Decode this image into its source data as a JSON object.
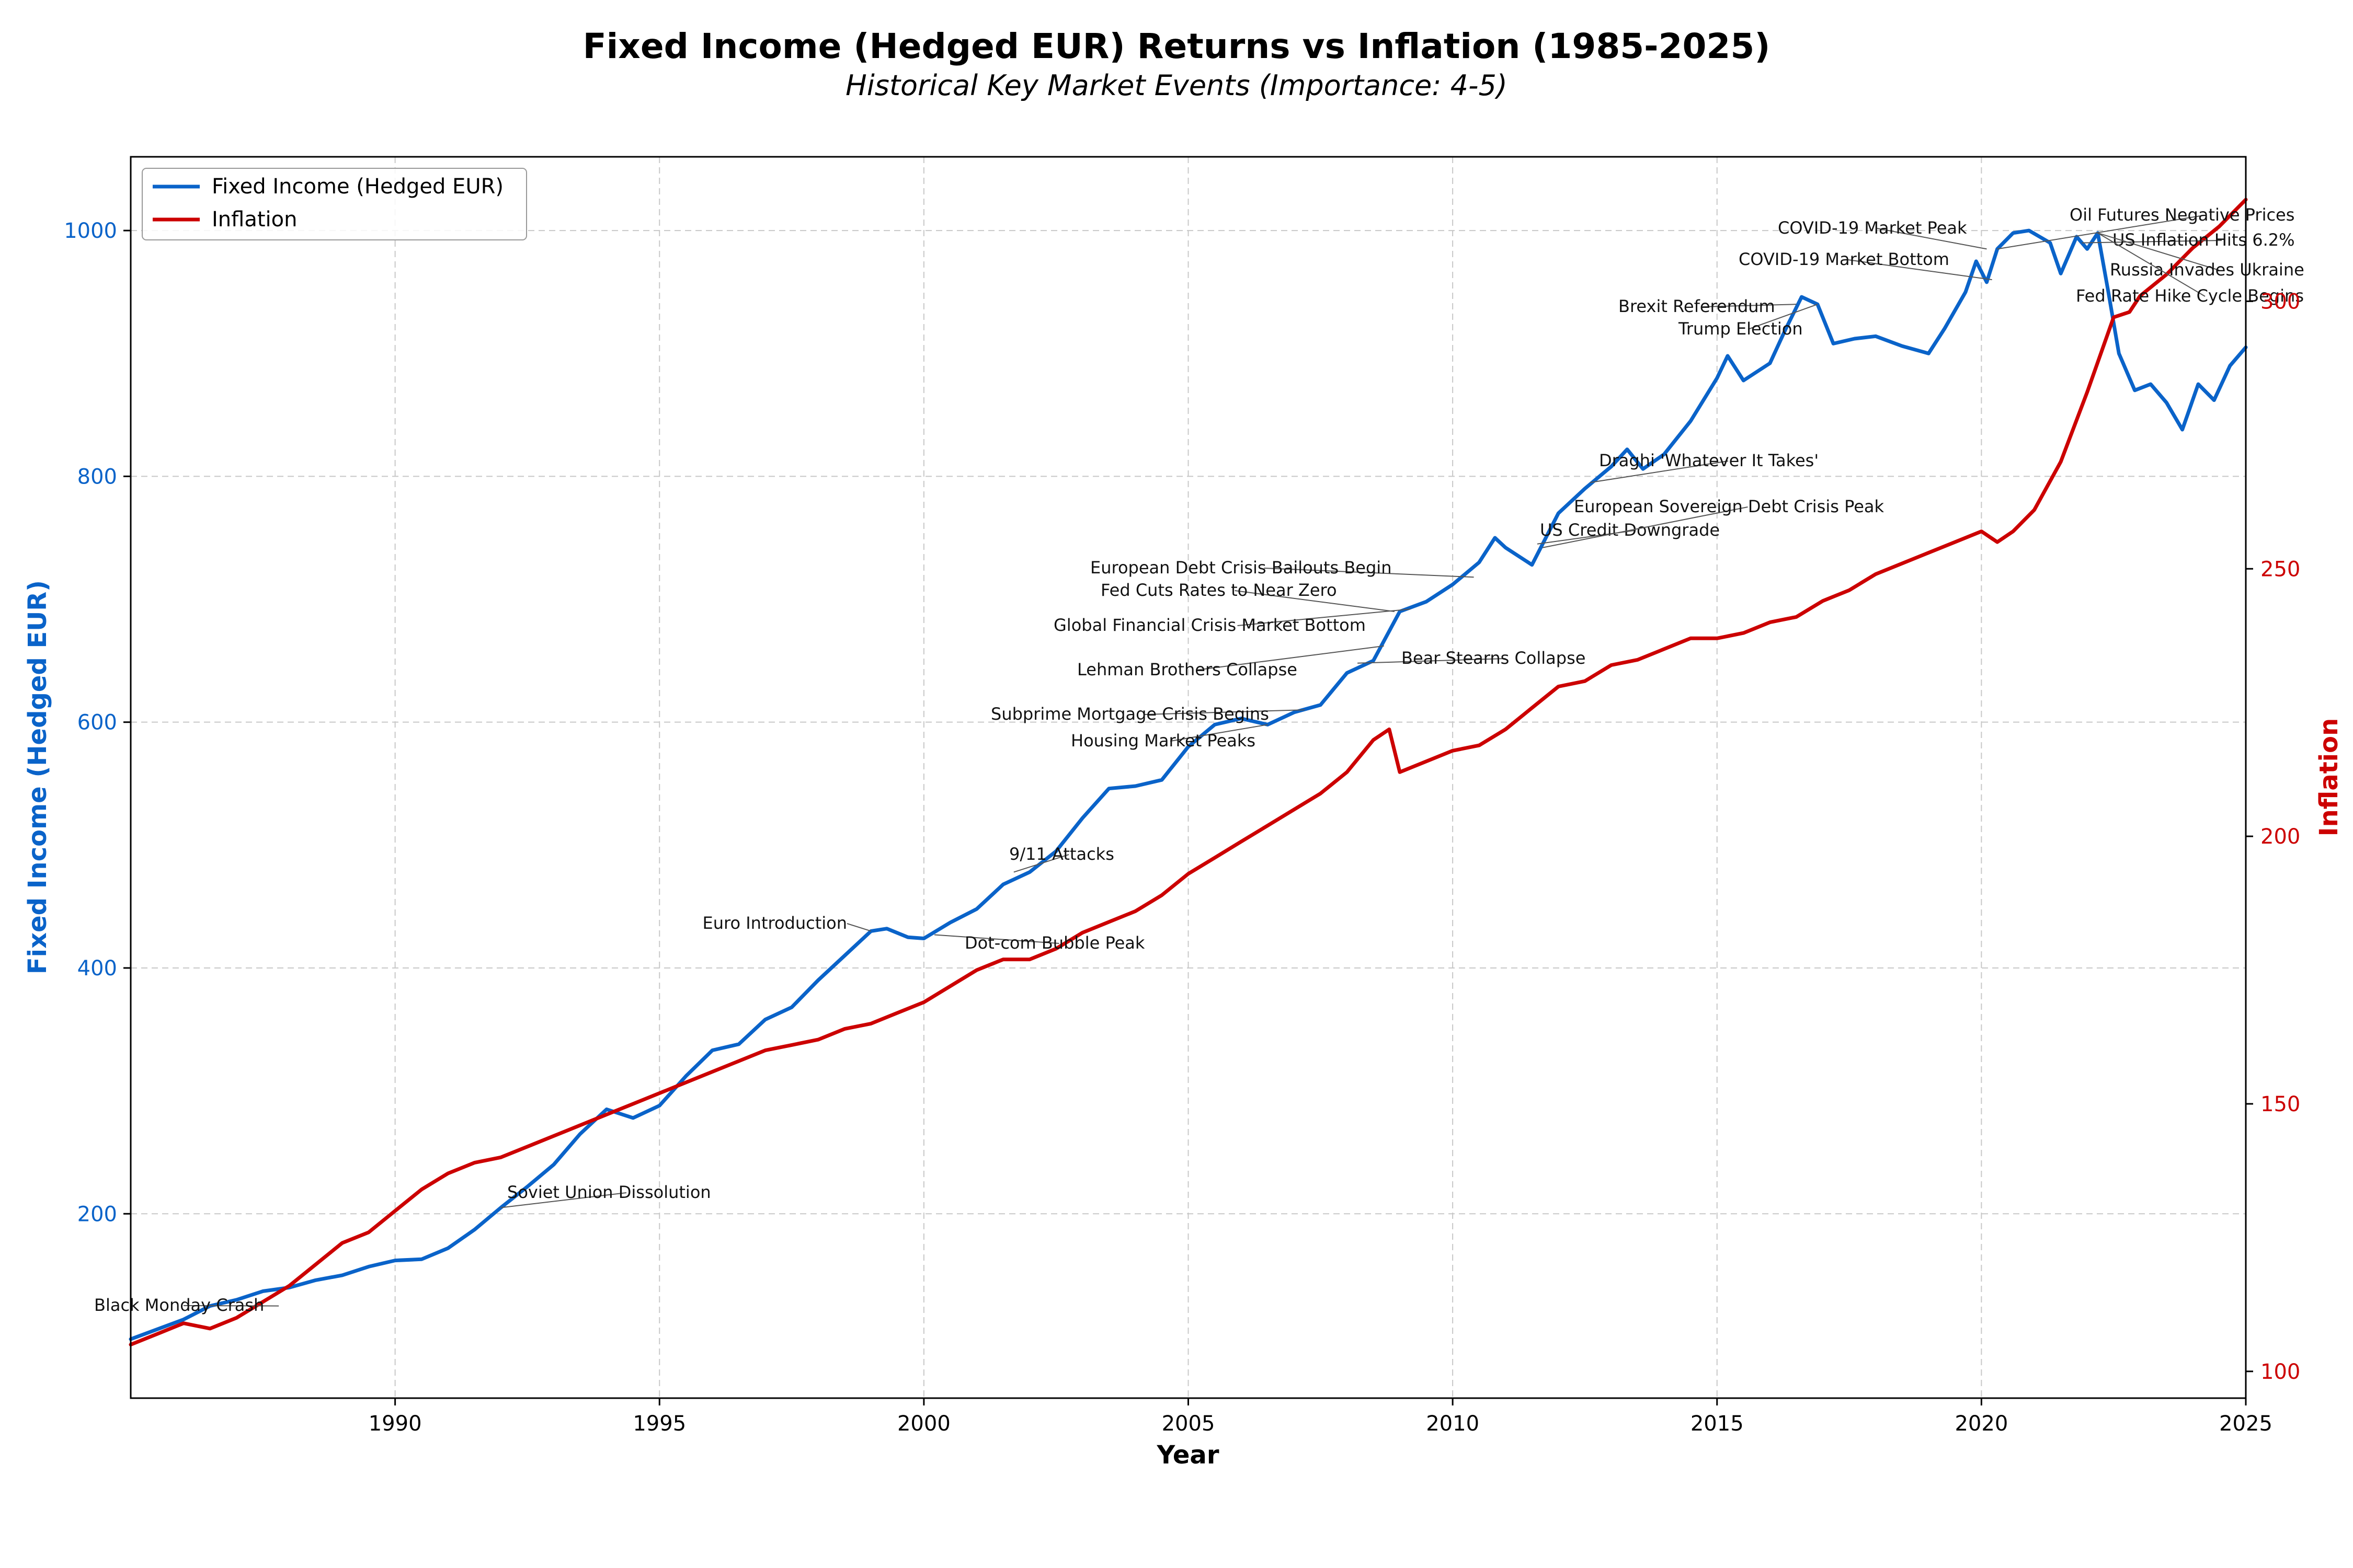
{
  "chart_data": {
    "type": "line",
    "title": "Fixed Income (Hedged EUR) Returns vs Inflation (1985-2025)",
    "subtitle": "Historical Key Market Events (Importance: 4-5)",
    "xlabel": "Year",
    "ylabel_left": "Fixed Income (Hedged EUR)",
    "ylabel_right": "Inflation",
    "xlim": [
      1985,
      2025
    ],
    "ylim_left": [
      50,
      1060
    ],
    "ylim_right": [
      95,
      327
    ],
    "x_ticks": [
      "1990",
      "1995",
      "2000",
      "2005",
      "2010",
      "2015",
      "2020",
      "2025"
    ],
    "y_ticks_left": [
      "200",
      "400",
      "600",
      "800",
      "1000"
    ],
    "y_ticks_right": [
      "100",
      "150",
      "200",
      "250",
      "300"
    ],
    "grid": true,
    "legend_position": "top-left",
    "colors": {
      "fixed_income": "#0a63c9",
      "inflation": "#cc0000",
      "grid": "#c8c8c8",
      "annotation": "#111111"
    },
    "series": [
      {
        "name": "Fixed Income (Hedged EUR)",
        "axis": "left",
        "points": [
          [
            1985.0,
            98
          ],
          [
            1985.5,
            106
          ],
          [
            1986.0,
            114
          ],
          [
            1986.5,
            125
          ],
          [
            1987.0,
            130
          ],
          [
            1987.5,
            137
          ],
          [
            1988.0,
            140
          ],
          [
            1988.5,
            146
          ],
          [
            1989.0,
            150
          ],
          [
            1989.5,
            157
          ],
          [
            1990.0,
            162
          ],
          [
            1990.5,
            163
          ],
          [
            1991.0,
            172
          ],
          [
            1991.5,
            187
          ],
          [
            1992.0,
            205
          ],
          [
            1992.5,
            222
          ],
          [
            1993.0,
            240
          ],
          [
            1993.5,
            265
          ],
          [
            1994.0,
            285
          ],
          [
            1994.5,
            278
          ],
          [
            1995.0,
            288
          ],
          [
            1995.5,
            312
          ],
          [
            1996.0,
            333
          ],
          [
            1996.5,
            338
          ],
          [
            1997.0,
            358
          ],
          [
            1997.5,
            368
          ],
          [
            1998.0,
            390
          ],
          [
            1998.5,
            410
          ],
          [
            1999.0,
            430
          ],
          [
            1999.3,
            432
          ],
          [
            1999.7,
            425
          ],
          [
            2000.0,
            424
          ],
          [
            2000.5,
            437
          ],
          [
            2001.0,
            448
          ],
          [
            2001.5,
            468
          ],
          [
            2002.0,
            478
          ],
          [
            2002.5,
            495
          ],
          [
            2003.0,
            522
          ],
          [
            2003.5,
            546
          ],
          [
            2004.0,
            548
          ],
          [
            2004.5,
            553
          ],
          [
            2005.0,
            580
          ],
          [
            2005.5,
            598
          ],
          [
            2006.0,
            603
          ],
          [
            2006.5,
            598
          ],
          [
            2007.0,
            608
          ],
          [
            2007.5,
            614
          ],
          [
            2008.0,
            640
          ],
          [
            2008.5,
            650
          ],
          [
            2009.0,
            690
          ],
          [
            2009.5,
            698
          ],
          [
            2010.0,
            712
          ],
          [
            2010.5,
            730
          ],
          [
            2010.8,
            750
          ],
          [
            2011.0,
            742
          ],
          [
            2011.5,
            728
          ],
          [
            2012.0,
            770
          ],
          [
            2012.5,
            790
          ],
          [
            2013.0,
            808
          ],
          [
            2013.3,
            822
          ],
          [
            2013.6,
            806
          ],
          [
            2014.0,
            818
          ],
          [
            2014.5,
            845
          ],
          [
            2015.0,
            880
          ],
          [
            2015.2,
            898
          ],
          [
            2015.5,
            878
          ],
          [
            2016.0,
            892
          ],
          [
            2016.3,
            920
          ],
          [
            2016.6,
            946
          ],
          [
            2016.9,
            940
          ],
          [
            2017.2,
            908
          ],
          [
            2017.6,
            912
          ],
          [
            2018.0,
            914
          ],
          [
            2018.5,
            906
          ],
          [
            2019.0,
            900
          ],
          [
            2019.3,
            920
          ],
          [
            2019.7,
            950
          ],
          [
            2019.9,
            975
          ],
          [
            2020.1,
            958
          ],
          [
            2020.3,
            985
          ],
          [
            2020.6,
            998
          ],
          [
            2020.9,
            1000
          ],
          [
            2021.3,
            990
          ],
          [
            2021.5,
            965
          ],
          [
            2021.8,
            995
          ],
          [
            2022.0,
            985
          ],
          [
            2022.2,
            998
          ],
          [
            2022.4,
            950
          ],
          [
            2022.6,
            900
          ],
          [
            2022.9,
            870
          ],
          [
            2023.2,
            875
          ],
          [
            2023.5,
            860
          ],
          [
            2023.8,
            838
          ],
          [
            2024.1,
            875
          ],
          [
            2024.4,
            862
          ],
          [
            2024.7,
            890
          ],
          [
            2025.0,
            905
          ]
        ]
      },
      {
        "name": "Inflation",
        "axis": "right",
        "points": [
          [
            1985.0,
            105
          ],
          [
            1985.5,
            107
          ],
          [
            1986.0,
            109
          ],
          [
            1986.5,
            108
          ],
          [
            1987.0,
            110
          ],
          [
            1987.5,
            113
          ],
          [
            1988.0,
            116
          ],
          [
            1988.5,
            120
          ],
          [
            1989.0,
            124
          ],
          [
            1989.5,
            126
          ],
          [
            1990.0,
            130
          ],
          [
            1990.5,
            134
          ],
          [
            1991.0,
            137
          ],
          [
            1991.5,
            139
          ],
          [
            1992.0,
            140
          ],
          [
            1992.5,
            142
          ],
          [
            1993.0,
            144
          ],
          [
            1993.5,
            146
          ],
          [
            1994.0,
            148
          ],
          [
            1994.5,
            150
          ],
          [
            1995.0,
            152
          ],
          [
            1995.5,
            154
          ],
          [
            1996.0,
            156
          ],
          [
            1996.5,
            158
          ],
          [
            1997.0,
            160
          ],
          [
            1997.5,
            161
          ],
          [
            1998.0,
            162
          ],
          [
            1998.5,
            164
          ],
          [
            1999.0,
            165
          ],
          [
            1999.5,
            167
          ],
          [
            2000.0,
            169
          ],
          [
            2000.5,
            172
          ],
          [
            2001.0,
            175
          ],
          [
            2001.5,
            177
          ],
          [
            2002.0,
            177
          ],
          [
            2002.5,
            179
          ],
          [
            2003.0,
            182
          ],
          [
            2003.5,
            184
          ],
          [
            2004.0,
            186
          ],
          [
            2004.5,
            189
          ],
          [
            2005.0,
            193
          ],
          [
            2005.5,
            196
          ],
          [
            2006.0,
            199
          ],
          [
            2006.5,
            202
          ],
          [
            2007.0,
            205
          ],
          [
            2007.5,
            208
          ],
          [
            2008.0,
            212
          ],
          [
            2008.5,
            218
          ],
          [
            2008.8,
            220
          ],
          [
            2009.0,
            212
          ],
          [
            2009.5,
            214
          ],
          [
            2010.0,
            216
          ],
          [
            2010.5,
            217
          ],
          [
            2011.0,
            220
          ],
          [
            2011.5,
            224
          ],
          [
            2012.0,
            228
          ],
          [
            2012.5,
            229
          ],
          [
            2013.0,
            232
          ],
          [
            2013.5,
            233
          ],
          [
            2014.0,
            235
          ],
          [
            2014.5,
            237
          ],
          [
            2015.0,
            237
          ],
          [
            2015.5,
            238
          ],
          [
            2016.0,
            240
          ],
          [
            2016.5,
            241
          ],
          [
            2017.0,
            244
          ],
          [
            2017.5,
            246
          ],
          [
            2018.0,
            249
          ],
          [
            2018.5,
            251
          ],
          [
            2019.0,
            253
          ],
          [
            2019.5,
            255
          ],
          [
            2020.0,
            257
          ],
          [
            2020.3,
            255
          ],
          [
            2020.6,
            257
          ],
          [
            2021.0,
            261
          ],
          [
            2021.5,
            270
          ],
          [
            2022.0,
            283
          ],
          [
            2022.5,
            297
          ],
          [
            2022.8,
            298
          ],
          [
            2023.0,
            301
          ],
          [
            2023.5,
            305
          ],
          [
            2024.0,
            310
          ],
          [
            2024.5,
            314
          ],
          [
            2025.0,
            319
          ]
        ]
      }
    ],
    "annotations": [
      {
        "label": "Black Monday Crash",
        "x": 1987.8,
        "y": 125
      },
      {
        "label": "Soviet Union Dissolution",
        "x": 1992.0,
        "y": 205
      },
      {
        "label": "Euro Introduction",
        "x": 1999.0,
        "y": 430
      },
      {
        "label": "Dot-com Bubble Peak",
        "x": 2000.2,
        "y": 427
      },
      {
        "label": "9/11 Attacks",
        "x": 2001.7,
        "y": 478
      },
      {
        "label": "Housing Market Peaks",
        "x": 2006.5,
        "y": 598
      },
      {
        "label": "Subprime Mortgage Crisis Begins",
        "x": 2007.2,
        "y": 610
      },
      {
        "label": "Bear Stearns Collapse",
        "x": 2008.2,
        "y": 648
      },
      {
        "label": "Lehman Brothers Collapse",
        "x": 2008.7,
        "y": 662
      },
      {
        "label": "Global Financial Crisis Market Bottom",
        "x": 2009.2,
        "y": 692
      },
      {
        "label": "Fed Cuts Rates to Near Zero",
        "x": 2008.9,
        "y": 690
      },
      {
        "label": "European Debt Crisis Bailouts Begin",
        "x": 2010.4,
        "y": 718
      },
      {
        "label": "US Credit Downgrade",
        "x": 2011.6,
        "y": 745
      },
      {
        "label": "European Sovereign Debt Crisis Peak",
        "x": 2011.7,
        "y": 742
      },
      {
        "label": "Draghi 'Whatever It Takes'",
        "x": 2012.6,
        "y": 795
      },
      {
        "label": "Brexit Referendum",
        "x": 2016.5,
        "y": 940
      },
      {
        "label": "Trump Election",
        "x": 2016.9,
        "y": 940
      },
      {
        "label": "COVID-19 Market Peak",
        "x": 2020.1,
        "y": 985
      },
      {
        "label": "COVID-19 Market Bottom",
        "x": 2020.2,
        "y": 960
      },
      {
        "label": "Oil Futures Negative Prices",
        "x": 2020.3,
        "y": 985
      },
      {
        "label": "US Inflation Hits 6.2%",
        "x": 2021.9,
        "y": 990
      },
      {
        "label": "Russia Invades Ukraine",
        "x": 2022.2,
        "y": 998
      },
      {
        "label": "Fed Rate Hike Cycle Begins",
        "x": 2022.2,
        "y": 998
      }
    ]
  }
}
